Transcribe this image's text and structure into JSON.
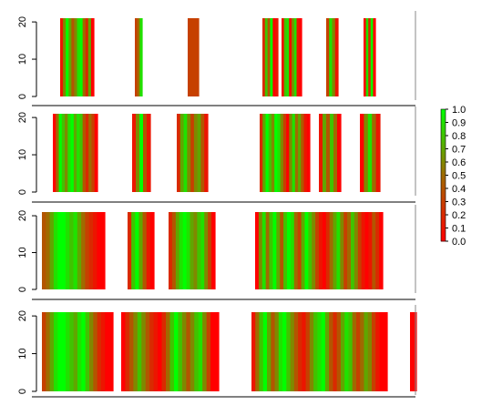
{
  "chart_data": {
    "type": "heatmap",
    "title": "",
    "xlabel": "",
    "ylabel": "",
    "colorscale": {
      "low_color": "#ff0000",
      "mid_color": "#a06a00",
      "high_color": "#00ff00",
      "range": [
        0.0,
        1.0
      ],
      "tick_labels": [
        "0.0",
        "0.1",
        "0.2",
        "0.3",
        "0.4",
        "0.5",
        "0.6",
        "0.7",
        "0.8",
        "0.9",
        "1.0"
      ]
    },
    "panels": [
      {
        "ylim": [
          0,
          21
        ],
        "y_tick_labels": [
          "0",
          "10",
          "20"
        ],
        "blocks": [
          {
            "values": [
              0.1,
              0.6,
              1.0,
              0.7,
              0.4,
              0.6,
              0.9,
              1.0,
              0.5,
              0.2,
              0.7,
              0.0
            ]
          },
          {
            "values": [
              0.3,
              0.5,
              0.9
            ]
          },
          {
            "values": [
              0.3,
              0.3,
              0.3,
              0.3
            ]
          },
          {
            "values": [
              0.2,
              0.8,
              0.4,
              1.0,
              0.0,
              0.1
            ]
          },
          {
            "values": [
              0.1,
              0.8,
              0.9,
              0.0,
              0.6,
              0.9,
              0.1,
              0.0
            ]
          },
          {
            "values": [
              0.3,
              0.9,
              0.6,
              0.1
            ]
          },
          {
            "values": [
              0.0,
              0.9,
              0.2,
              1.0,
              0.0
            ]
          }
        ]
      },
      {
        "ylim": [
          0,
          21
        ],
        "y_tick_labels": [
          "0",
          "10",
          "20"
        ],
        "blocks": [
          {
            "values": [
              0.0,
              0.5,
              1.0,
              0.8,
              0.6,
              0.9,
              1.0,
              0.7,
              0.9,
              0.8,
              0.4,
              0.2,
              0.5,
              0.3,
              0.0
            ]
          },
          {
            "values": [
              0.1,
              0.6,
              1.0,
              0.4,
              0.1
            ]
          },
          {
            "values": [
              0.2,
              0.7,
              0.9,
              0.6,
              0.3,
              0.6,
              0.7,
              0.4,
              0.1
            ]
          },
          {
            "values": [
              0.2,
              0.7,
              1.0,
              0.8,
              0.6,
              1.0,
              0.9,
              0.6,
              0.3,
              0.0,
              0.6,
              0.9,
              0.5,
              0.7,
              0.4,
              0.1,
              0.0
            ]
          },
          {
            "values": [
              0.1,
              0.7,
              0.4,
              0.8,
              0.5,
              0.0
            ]
          },
          {
            "values": [
              0.0,
              0.6,
              0.9,
              0.5,
              0.1
            ]
          }
        ]
      },
      {
        "ylim": [
          0,
          21
        ],
        "y_tick_labels": [
          "0",
          "10",
          "20"
        ],
        "blocks": [
          {
            "values": [
              0.4,
              0.5,
              0.7,
              0.9,
              1.0,
              1.0,
              0.9,
              0.8,
              0.9,
              0.7,
              0.5,
              0.3,
              0.2,
              0.1,
              0.0,
              0.0
            ]
          },
          {
            "values": [
              0.2,
              0.8,
              1.0,
              0.7,
              0.4,
              0.1,
              0.0
            ]
          },
          {
            "values": [
              0.2,
              0.4,
              0.7,
              0.9,
              1.0,
              0.9,
              0.7,
              0.6,
              0.8,
              0.9,
              0.6,
              0.3,
              0.0
            ]
          },
          {
            "values": [
              0.0,
              0.6,
              0.9,
              0.5,
              0.8,
              1.0,
              0.7,
              0.4,
              0.8,
              1.0,
              0.9,
              0.5,
              0.3,
              0.7,
              1.0,
              0.8,
              0.6,
              0.3,
              0.1,
              0.0,
              0.2,
              0.5,
              0.7,
              0.9,
              0.6,
              0.3,
              0.5,
              0.8,
              0.6,
              0.3,
              0.1,
              0.0,
              0.1,
              0.4,
              0.2,
              0.0
            ]
          }
        ]
      },
      {
        "ylim": [
          0,
          21
        ],
        "y_tick_labels": [
          "0",
          "10",
          "20"
        ],
        "blocks": [
          {
            "values": [
              0.3,
              0.5,
              0.7,
              0.9,
              1.0,
              1.0,
              0.9,
              0.8,
              0.7,
              0.9,
              1.0,
              0.8,
              0.6,
              0.4,
              0.2,
              0.1,
              0.0,
              0.0
            ]
          },
          {
            "values": [
              0.0,
              0.2,
              0.4,
              0.6,
              0.8,
              0.6,
              0.4,
              0.2,
              0.1,
              0.0,
              0.2,
              0.5,
              0.8,
              1.0,
              0.8,
              0.6,
              0.4,
              0.6,
              0.8,
              0.9,
              0.6,
              0.3,
              0.0,
              0.0
            ]
          },
          {
            "values": [
              0.1,
              0.5,
              0.8,
              1.0,
              0.7,
              0.4,
              0.6,
              0.9,
              1.0,
              0.8,
              0.6,
              0.4,
              0.2,
              0.1,
              0.3,
              0.6,
              0.8,
              0.9,
              1.0,
              0.7,
              0.4,
              0.2,
              0.4,
              0.7,
              0.9,
              0.8,
              0.5,
              0.3,
              0.5,
              0.7,
              0.6,
              0.3,
              0.1,
              0.0,
              0.0
            ]
          },
          {
            "values": [
              0.0,
              0.0
            ]
          }
        ]
      }
    ]
  }
}
